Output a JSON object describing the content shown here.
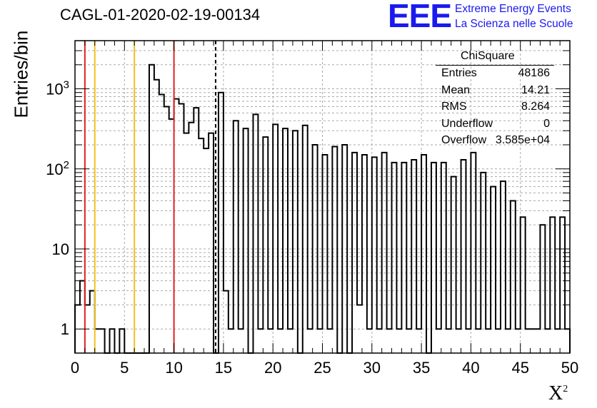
{
  "header": {
    "title": "CAGL-01-2020-02-19-00134",
    "logo": "EEE",
    "brand_line1": "Extreme Energy Events",
    "brand_line2": "La Scienza nelle Scuole",
    "brand_color": "#1a1aee"
  },
  "stats_box": {
    "name": "ChiSquare",
    "rows": [
      {
        "label": "Entries",
        "value": "48186"
      },
      {
        "label": "Mean",
        "value": "14.21"
      },
      {
        "label": "RMS",
        "value": "8.264"
      },
      {
        "label": "Underflow",
        "value": "0"
      },
      {
        "label": "Overflow",
        "value": "3.585e+04"
      }
    ]
  },
  "chart_data": {
    "type": "histogram",
    "title": "CAGL-01-2020-02-19-00134",
    "xlabel": "X²",
    "ylabel": "Entries/bin",
    "xlim": [
      0,
      50
    ],
    "ylim": [
      0.5,
      4000
    ],
    "y_scale": "log",
    "grid": true,
    "bin_width": 0.5,
    "x_ticks": [
      0,
      5,
      10,
      15,
      20,
      25,
      30,
      35,
      40,
      45,
      50
    ],
    "y_tick_labels": [
      "1",
      "10",
      "10²",
      "10³"
    ],
    "bin_values": [
      2,
      4,
      2,
      3,
      1,
      1,
      0,
      1,
      0,
      1,
      0,
      0,
      0,
      0,
      0,
      2000,
      1300,
      850,
      600,
      420,
      750,
      650,
      280,
      380,
      580,
      240,
      180,
      280,
      0,
      900,
      3,
      1,
      400,
      1,
      320,
      0,
      480,
      1,
      250,
      1,
      360,
      1,
      320,
      1,
      300,
      0,
      350,
      1,
      200,
      1,
      150,
      1,
      190,
      0,
      200,
      0,
      160,
      2,
      150,
      1,
      140,
      1,
      160,
      1,
      120,
      1,
      120,
      1,
      130,
      1,
      150,
      0,
      120,
      1,
      120,
      1,
      80,
      1,
      130,
      1,
      160,
      1,
      90,
      1,
      60,
      1,
      70,
      1,
      40,
      1,
      25,
      1,
      1,
      1,
      20,
      1,
      25,
      1,
      25,
      1
    ],
    "bin_values_note_skipped": true,
    "vertical_lines": [
      {
        "x": 1,
        "color": "#e02020",
        "style": "solid"
      },
      {
        "x": 2,
        "color": "#f0c020",
        "style": "solid"
      },
      {
        "x": 6,
        "color": "#f0c020",
        "style": "solid"
      },
      {
        "x": 10,
        "color": "#e02020",
        "style": "solid"
      },
      {
        "x": 14.21,
        "color": "#000000",
        "style": "dashed"
      }
    ]
  }
}
